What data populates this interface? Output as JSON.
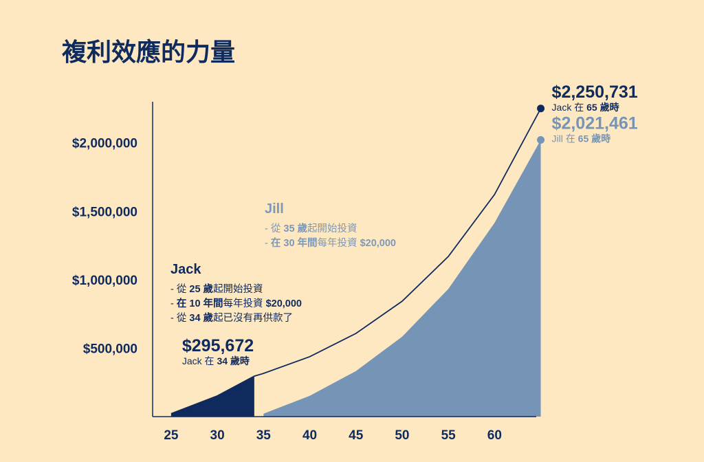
{
  "chart_data": {
    "type": "line",
    "title": "複利效應的力量",
    "xlim": [
      23,
      66
    ],
    "xticks": [
      25,
      30,
      35,
      40,
      45,
      50,
      55,
      60
    ],
    "ylim": [
      0,
      2300000
    ],
    "yticks": [
      {
        "value": 500000,
        "label": "$500,000"
      },
      {
        "value": 1000000,
        "label": "$1,000,000"
      },
      {
        "value": 1500000,
        "label": "$1,500,000"
      },
      {
        "value": 2000000,
        "label": "$2,000,000"
      }
    ],
    "grid": false,
    "series": [
      {
        "name": "Jack",
        "color": "#0f2a5c",
        "style": "line",
        "fill_xlim": [
          25,
          34
        ],
        "end_marker": true,
        "x": [
          25,
          30,
          34,
          35,
          40,
          45,
          50,
          55,
          60,
          65
        ],
        "values": [
          21354,
          151700,
          295672,
          315689,
          437900,
          607600,
          843000,
          1169700,
          1622700,
          2250731
        ],
        "value_labels": [
          null,
          null,
          "$295,672",
          null,
          null,
          null,
          null,
          null,
          null,
          "$2,250,731"
        ],
        "value_notes": [
          null,
          null,
          [
            "Jack 在 ",
            "34 歲時"
          ],
          null,
          null,
          null,
          null,
          null,
          null,
          [
            "Jack 在 ",
            "65 歲時"
          ]
        ]
      },
      {
        "name": "Jill",
        "color": "#7594b6",
        "style": "area",
        "end_marker": true,
        "x": [
          35,
          40,
          45,
          50,
          55,
          60,
          65
        ],
        "values": [
          21354,
          151700,
          332800,
          583900,
          933000,
          1415800,
          2021461
        ],
        "value_labels": [
          null,
          null,
          null,
          null,
          null,
          null,
          "$2,021,461"
        ],
        "value_notes": [
          null,
          null,
          null,
          null,
          null,
          null,
          [
            "Jill 在 ",
            "65 歲時"
          ]
        ]
      }
    ],
    "descriptions": [
      {
        "title": "Jack",
        "color": "#0f2a5c",
        "lines": [
          [
            "- 從 ",
            "25 歲",
            "起開始投資"
          ],
          [
            "- ",
            "在 10 年間",
            "每年投資 ",
            "$20,000"
          ],
          [
            "- 從 ",
            "34 歲",
            "起已沒有再供款了"
          ]
        ]
      },
      {
        "title": "Jill",
        "color": "#7d98b8",
        "lines": [
          [
            "- 從 ",
            "35 歲",
            "起開始投資"
          ],
          [
            "- ",
            "在 30 年間",
            "每年投資 ",
            "$20,000"
          ]
        ]
      }
    ]
  }
}
